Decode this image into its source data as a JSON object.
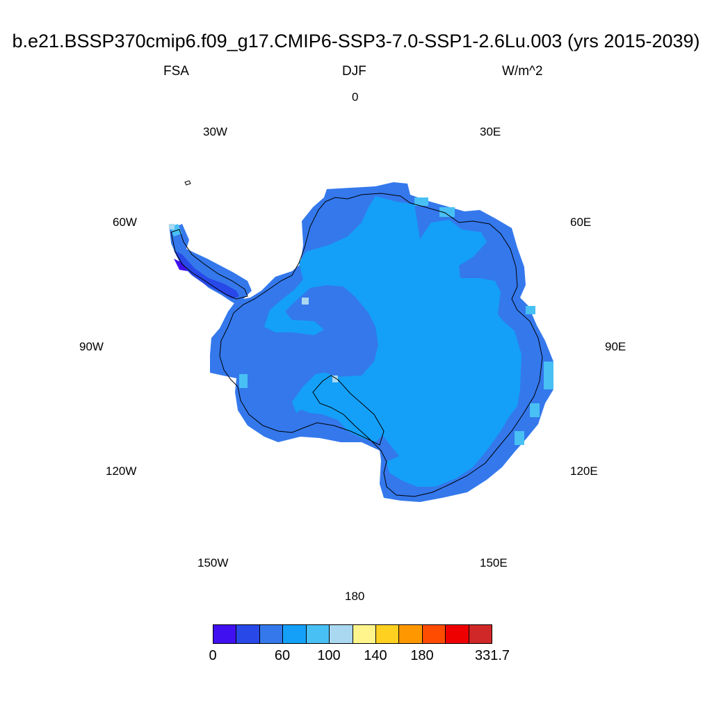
{
  "title": "b.e21.BSSP370cmip6.f09_g17.CMIP6-SSP3-7.0-SSP1-2.6Lu.003 (yrs 2015-2039)",
  "variable": "FSA",
  "season": "DJF",
  "units": "W/m^2",
  "longitude_labels": {
    "n": "0",
    "e30": "30E",
    "e60": "60E",
    "e90": "90E",
    "e120": "120E",
    "e150": "150E",
    "s": "180",
    "w150": "150W",
    "w120": "120W",
    "w90": "90W",
    "w60": "60W",
    "w30": "30W"
  },
  "colorbar": {
    "colors": [
      "#4010f0",
      "#2848e8",
      "#3478ec",
      "#14a0f8",
      "#48c0f4",
      "#aad8f0",
      "#fff58c",
      "#ffd020",
      "#ff9800",
      "#ff4c00",
      "#ee0000",
      "#d02828"
    ],
    "tick_labels": [
      "0",
      "60",
      "100",
      "140",
      "180",
      "331.7"
    ]
  },
  "map_colors": {
    "interior": "#14a0f8",
    "coastal_band": "#3478ec",
    "low_band": "#2848e8",
    "lowest": "#4010f0",
    "light": "#48c0f4",
    "pale": "#aad8f0",
    "coastline": "#000000"
  }
}
